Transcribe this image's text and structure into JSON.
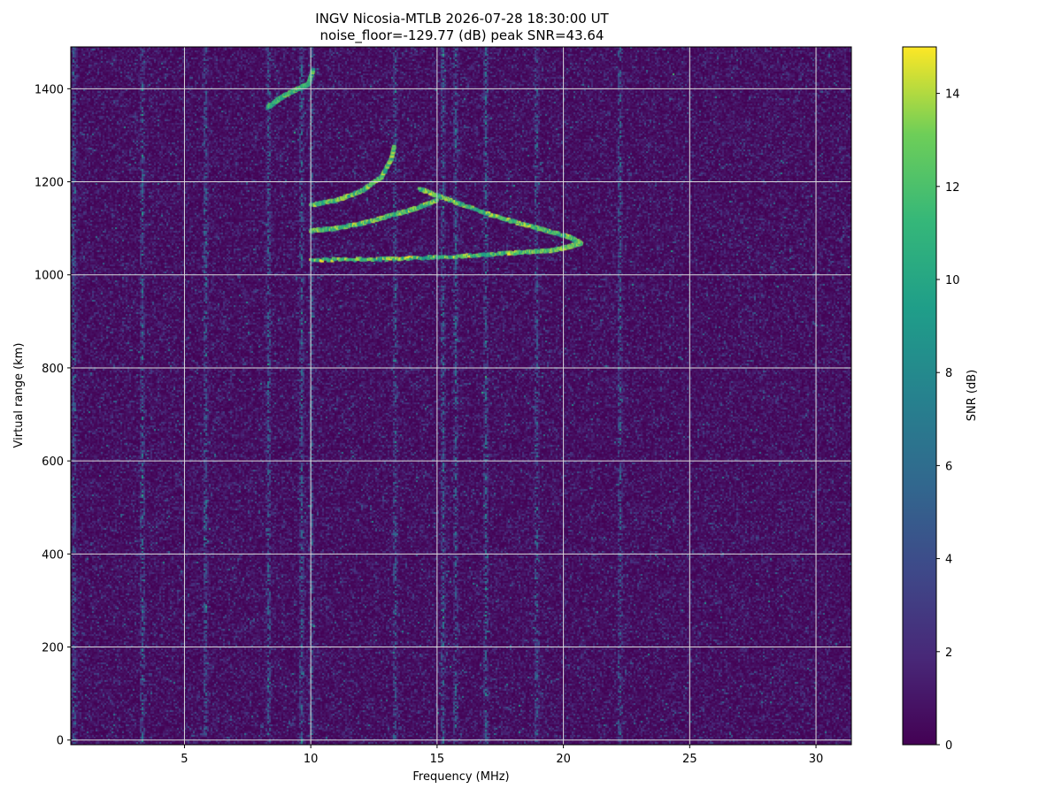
{
  "chart_data": {
    "type": "heatmap",
    "title": "INGV Nicosia-MTLB 2026-07-28 18:30:00  UT",
    "subtitle": "noise_floor=-129.77 (dB) peak SNR=43.64",
    "xlabel": "Frequency (MHz)",
    "ylabel": "Virtual range (km)",
    "xlim": [
      0.5,
      31.4
    ],
    "ylim": [
      -10,
      1490
    ],
    "xticks": [
      5,
      10,
      15,
      20,
      25,
      30
    ],
    "yticks": [
      0,
      200,
      400,
      600,
      800,
      1000,
      1200,
      1400
    ],
    "grid": true,
    "colorbar": {
      "label": "SNR (dB)",
      "range": [
        0,
        15
      ],
      "ticks": [
        0,
        2,
        4,
        6,
        8,
        10,
        12,
        14
      ],
      "colormap": "viridis"
    },
    "noise_level_db": 1.0,
    "vertical_interference_mhz": [
      0.6,
      3.3,
      5.8,
      8.3,
      9.6,
      10.0,
      13.3,
      15.2,
      15.7,
      16.9,
      18.9,
      22.2
    ],
    "echo_traces": [
      {
        "name": "o-trace",
        "points": [
          [
            10.0,
            1032
          ],
          [
            13.0,
            1034
          ],
          [
            16.0,
            1040
          ],
          [
            18.0,
            1047
          ],
          [
            19.5,
            1052
          ],
          [
            20.2,
            1060
          ],
          [
            20.7,
            1068
          ]
        ],
        "peak_snr_db": 15
      },
      {
        "name": "o-trace-high",
        "points": [
          [
            20.7,
            1068
          ],
          [
            20.2,
            1082
          ],
          [
            19.0,
            1100
          ],
          [
            17.5,
            1122
          ],
          [
            15.5,
            1160
          ],
          [
            14.3,
            1185
          ]
        ],
        "peak_snr_db": 15
      },
      {
        "name": "x-trace",
        "points": [
          [
            10.0,
            1095
          ],
          [
            11.0,
            1100
          ],
          [
            12.0,
            1110
          ],
          [
            13.0,
            1125
          ],
          [
            14.0,
            1140
          ],
          [
            15.0,
            1160
          ]
        ],
        "peak_snr_db": 15
      },
      {
        "name": "multihop-cusp",
        "points": [
          [
            10.0,
            1150
          ],
          [
            11.0,
            1160
          ],
          [
            12.0,
            1180
          ],
          [
            12.8,
            1210
          ],
          [
            13.2,
            1250
          ],
          [
            13.3,
            1275
          ]
        ],
        "peak_snr_db": 15
      },
      {
        "name": "sporadic-high-band",
        "points": [
          [
            8.3,
            1360
          ],
          [
            8.8,
            1380
          ],
          [
            9.3,
            1395
          ],
          [
            9.9,
            1410
          ],
          [
            10.1,
            1440
          ]
        ],
        "peak_snr_db": 14
      }
    ]
  }
}
